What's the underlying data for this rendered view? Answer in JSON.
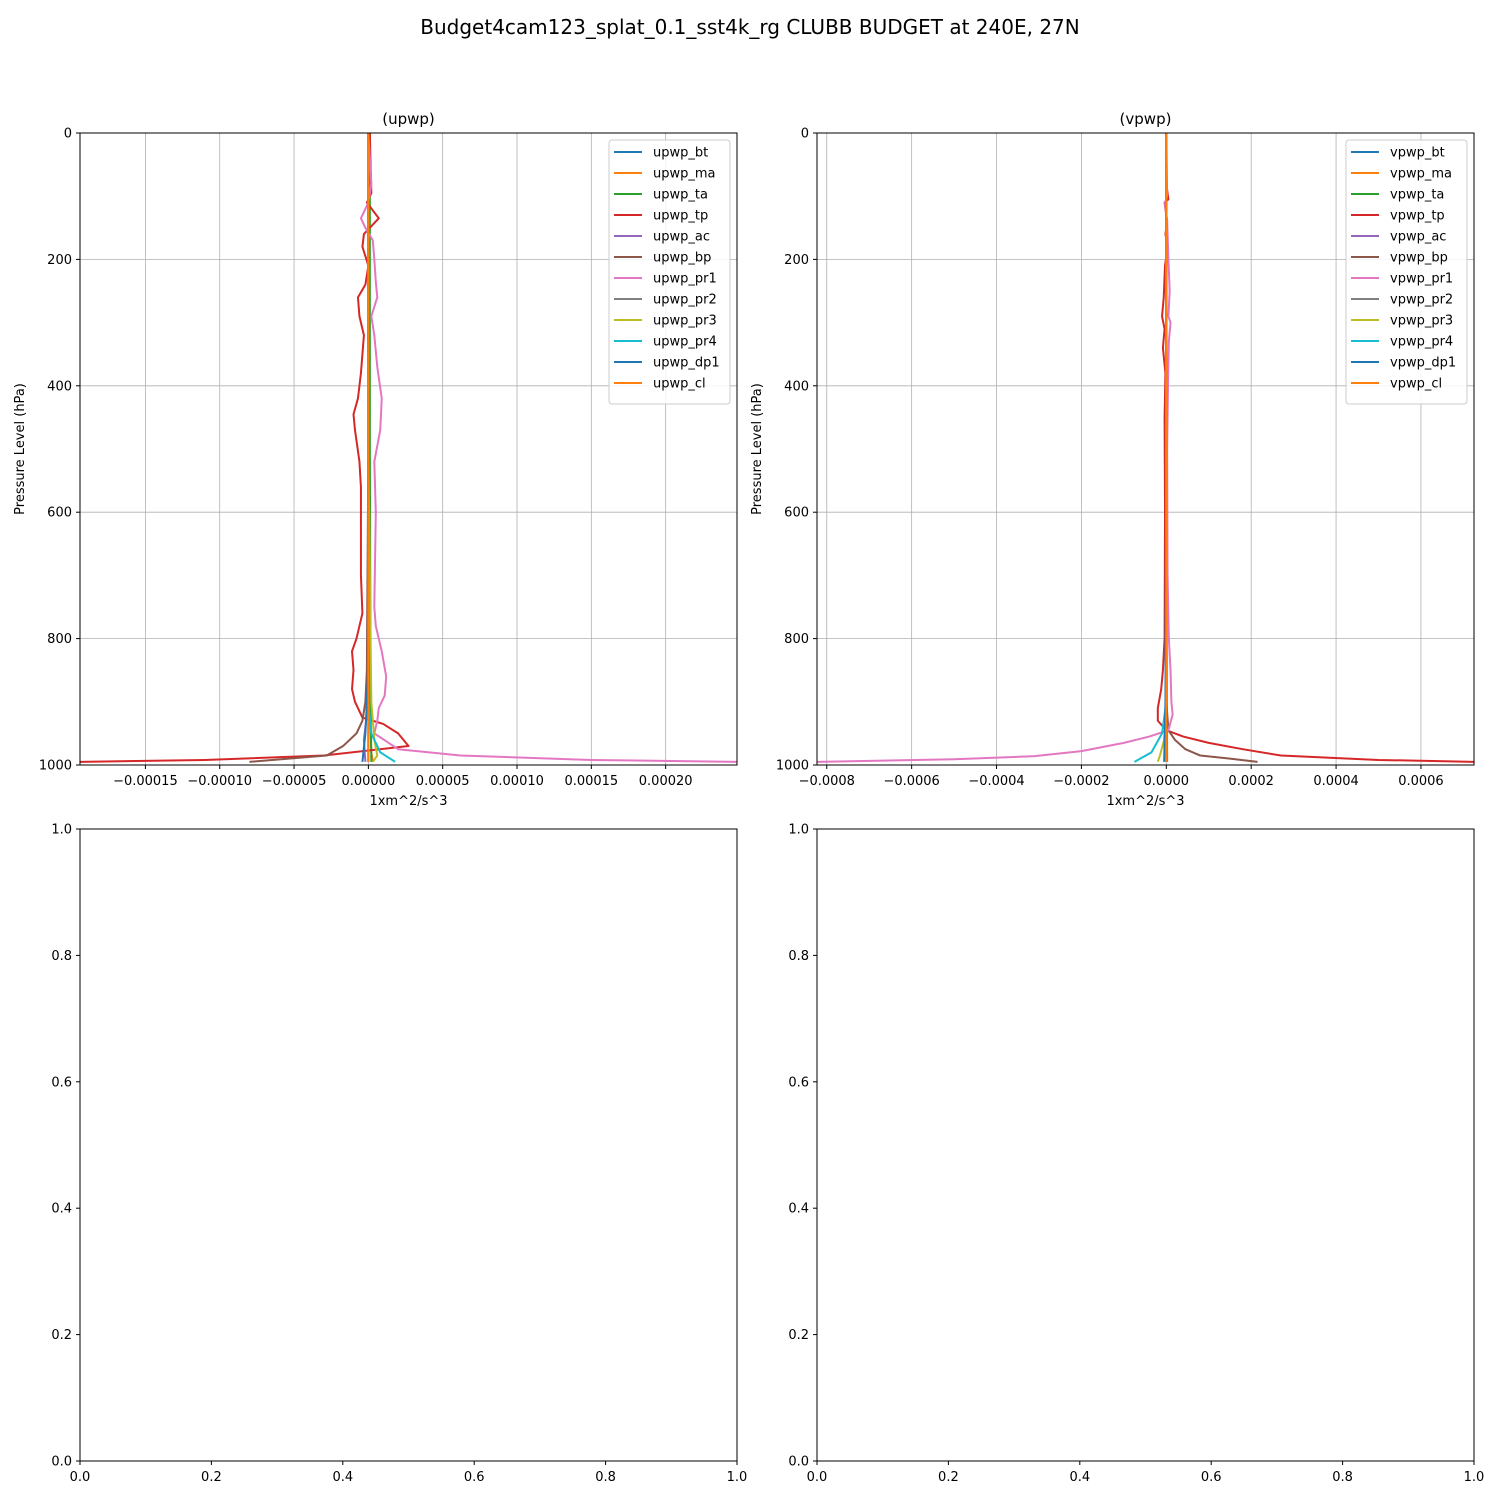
{
  "figure_title": "Budget4cam123_splat_0.1_sst4k_rg CLUBB BUDGET at 240E, 27N",
  "chart_data": [
    {
      "type": "line",
      "title": "(upwp)",
      "xlabel": "1xm^2/s^3",
      "ylabel": "Pressure Level (hPa)",
      "xlim": [
        -0.000194,
        0.000248
      ],
      "ylim": [
        1000,
        0
      ],
      "y_inverted": true,
      "grid": true,
      "legend_position": "upper right",
      "xticks": [
        -0.00015,
        -0.0001,
        -5e-05,
        0,
        5e-05,
        0.0001,
        0.00015,
        0.0002
      ],
      "xtick_labels": [
        "−0.00015",
        "−0.00010",
        "−0.00005",
        "0.00000",
        "0.00005",
        "0.00010",
        "0.00015",
        "0.00020"
      ],
      "yticks": [
        0,
        200,
        400,
        600,
        800,
        1000
      ],
      "ytick_labels": [
        "0",
        "200",
        "400",
        "600",
        "800",
        "1000"
      ],
      "series": [
        {
          "name": "upwp_bt",
          "color": "#1f77b4",
          "points": [
            [
              0.0,
              0
            ],
            [
              0.0,
              500
            ],
            [
              0.0,
              900
            ],
            [
              0.0,
              995
            ]
          ]
        },
        {
          "name": "upwp_ma",
          "color": "#ff7f0e",
          "points": [
            [
              5e-07,
              0
            ],
            [
              5e-07,
              500
            ],
            [
              1e-06,
              900
            ],
            [
              2e-06,
              980
            ],
            [
              3e-06,
              995
            ]
          ]
        },
        {
          "name": "upwp_ta",
          "color": "#2ca02c",
          "points": [
            [
              1e-06,
              0
            ],
            [
              1e-06,
              500
            ],
            [
              1.5e-06,
              900
            ],
            [
              2e-06,
              995
            ]
          ]
        },
        {
          "name": "upwp_tp",
          "color": "#d62728",
          "points": [
            [
              1e-06,
              0
            ],
            [
              1.5e-06,
              50
            ],
            [
              2e-06,
              95
            ],
            [
              -1e-06,
              110
            ],
            [
              7e-06,
              135
            ],
            [
              -3e-06,
              160
            ],
            [
              -4e-06,
              180
            ],
            [
              0.0,
              210
            ],
            [
              -2e-06,
              240
            ],
            [
              -7e-06,
              260
            ],
            [
              -6e-06,
              290
            ],
            [
              -3e-06,
              320
            ],
            [
              -5e-06,
              380
            ],
            [
              -7e-06,
              420
            ],
            [
              -1e-05,
              445
            ],
            [
              -9e-06,
              470
            ],
            [
              -6e-06,
              520
            ],
            [
              -5e-06,
              560
            ],
            [
              -5e-06,
              700
            ],
            [
              -4e-06,
              760
            ],
            [
              -8e-06,
              800
            ],
            [
              -1.1e-05,
              820
            ],
            [
              -1e-05,
              850
            ],
            [
              -1.1e-05,
              880
            ],
            [
              -9e-06,
              900
            ],
            [
              -4e-06,
              925
            ],
            [
              1e-05,
              935
            ],
            [
              2e-05,
              950
            ],
            [
              2.7e-05,
              970
            ],
            [
              -3e-05,
              985
            ],
            [
              -0.00011,
              992
            ],
            [
              -0.000194,
              995
            ]
          ]
        },
        {
          "name": "upwp_ac",
          "color": "#9467bd",
          "points": [
            [
              0.0,
              0
            ],
            [
              0.0,
              500
            ],
            [
              0.0,
              900
            ],
            [
              -3e-06,
              960
            ],
            [
              -2e-06,
              995
            ]
          ]
        },
        {
          "name": "upwp_bp",
          "color": "#8c564b",
          "points": [
            [
              0.0,
              0
            ],
            [
              0.0,
              500
            ],
            [
              -1e-06,
              850
            ],
            [
              -2e-06,
              900
            ],
            [
              -4e-06,
              930
            ],
            [
              -8e-06,
              950
            ],
            [
              -1.7e-05,
              970
            ],
            [
              -2.8e-05,
              985
            ],
            [
              -8e-05,
              995
            ]
          ]
        },
        {
          "name": "upwp_pr1",
          "color": "#e377c2",
          "points": [
            [
              0.0,
              0
            ],
            [
              1e-06,
              40
            ],
            [
              2e-06,
              80
            ],
            [
              0.0,
              110
            ],
            [
              -5e-06,
              135
            ],
            [
              -2e-06,
              150
            ],
            [
              3e-06,
              170
            ],
            [
              4e-06,
              200
            ],
            [
              5e-06,
              235
            ],
            [
              6e-06,
              260
            ],
            [
              2e-06,
              290
            ],
            [
              4e-06,
              320
            ],
            [
              6e-06,
              370
            ],
            [
              9e-06,
              420
            ],
            [
              8e-06,
              470
            ],
            [
              4e-06,
              520
            ],
            [
              5e-06,
              600
            ],
            [
              4e-06,
              750
            ],
            [
              5e-06,
              780
            ],
            [
              9e-06,
              820
            ],
            [
              1.2e-05,
              860
            ],
            [
              1.1e-05,
              890
            ],
            [
              7e-06,
              910
            ],
            [
              6e-06,
              930
            ],
            [
              4e-06,
              950
            ],
            [
              2e-05,
              975
            ],
            [
              6.2e-05,
              985
            ],
            [
              0.00015,
              992
            ],
            [
              0.000248,
              995
            ]
          ]
        },
        {
          "name": "upwp_pr2",
          "color": "#7f7f7f",
          "points": [
            [
              0.0,
              0
            ],
            [
              0.0,
              500
            ],
            [
              0.0,
              900
            ],
            [
              0.0,
              995
            ]
          ]
        },
        {
          "name": "upwp_pr3",
          "color": "#bcbd22",
          "points": [
            [
              0.0,
              0
            ],
            [
              0.0,
              500
            ],
            [
              2e-06,
              900
            ],
            [
              4e-06,
              960
            ],
            [
              6e-06,
              985
            ],
            [
              3e-06,
              995
            ]
          ]
        },
        {
          "name": "upwp_pr4",
          "color": "#17becf",
          "points": [
            [
              0.0,
              0
            ],
            [
              0.0,
              500
            ],
            [
              0.0,
              900
            ],
            [
              2e-06,
              950
            ],
            [
              8e-06,
              980
            ],
            [
              1.8e-05,
              995
            ]
          ]
        },
        {
          "name": "upwp_dp1",
          "color": "#1f77b4",
          "points": [
            [
              0.0,
              0
            ],
            [
              0.0,
              500
            ],
            [
              0.0,
              850
            ],
            [
              -2e-06,
              950
            ],
            [
              -4e-06,
              995
            ]
          ]
        },
        {
          "name": "upwp_cl",
          "color": "#ff7f0e",
          "points": [
            [
              0.0,
              0
            ],
            [
              0.0,
              500
            ],
            [
              0.0,
              900
            ],
            [
              0.0,
              995
            ]
          ]
        }
      ]
    },
    {
      "type": "line",
      "title": "(vpwp)",
      "xlabel": "1xm^2/s^3",
      "ylabel": "Pressure Level (hPa)",
      "xlim": [
        -0.000823,
        0.000725
      ],
      "ylim": [
        1000,
        0
      ],
      "y_inverted": true,
      "grid": true,
      "legend_position": "upper right",
      "xticks": [
        -0.0008,
        -0.0006,
        -0.0004,
        -0.0002,
        0,
        0.0002,
        0.0004,
        0.0006
      ],
      "xtick_labels": [
        "−0.0008",
        "−0.0006",
        "−0.0004",
        "−0.0002",
        "0.0000",
        "0.0002",
        "0.0004",
        "0.0006"
      ],
      "yticks": [
        0,
        200,
        400,
        600,
        800,
        1000
      ],
      "ytick_labels": [
        "0",
        "200",
        "400",
        "600",
        "800",
        "1000"
      ],
      "series": [
        {
          "name": "vpwp_bt",
          "color": "#1f77b4",
          "points": [
            [
              0.0,
              0
            ],
            [
              0.0,
              500
            ],
            [
              0.0,
              995
            ]
          ]
        },
        {
          "name": "vpwp_ma",
          "color": "#ff7f0e",
          "points": [
            [
              0.0,
              0
            ],
            [
              0.0,
              500
            ],
            [
              2e-06,
              995
            ]
          ]
        },
        {
          "name": "vpwp_ta",
          "color": "#2ca02c",
          "points": [
            [
              0.0,
              0
            ],
            [
              0.0,
              500
            ],
            [
              1e-06,
              995
            ]
          ]
        },
        {
          "name": "vpwp_tp",
          "color": "#d62728",
          "points": [
            [
              0.0,
              0
            ],
            [
              0.0,
              80
            ],
            [
              5e-06,
              105
            ],
            [
              -4e-06,
              110
            ],
            [
              2e-06,
              140
            ],
            [
              -2e-06,
              160
            ],
            [
              3e-06,
              180
            ],
            [
              -3e-06,
              210
            ],
            [
              -6e-06,
              260
            ],
            [
              -1e-05,
              290
            ],
            [
              -4e-06,
              310
            ],
            [
              -8e-06,
              340
            ],
            [
              -2e-06,
              380
            ],
            [
              -4e-06,
              450
            ],
            [
              -3e-06,
              600
            ],
            [
              -4e-06,
              800
            ],
            [
              -8e-06,
              850
            ],
            [
              -1.2e-05,
              880
            ],
            [
              -2e-05,
              910
            ],
            [
              -2e-05,
              930
            ],
            [
              0.0,
              945
            ],
            [
              4e-05,
              955
            ],
            [
              0.0001,
              965
            ],
            [
              0.00018,
              975
            ],
            [
              0.00027,
              985
            ],
            [
              0.0005,
              992
            ],
            [
              0.000725,
              995
            ]
          ]
        },
        {
          "name": "vpwp_ac",
          "color": "#9467bd",
          "points": [
            [
              0.0,
              0
            ],
            [
              0.0,
              500
            ],
            [
              0.0,
              995
            ]
          ]
        },
        {
          "name": "vpwp_bp",
          "color": "#8c564b",
          "points": [
            [
              0.0,
              0
            ],
            [
              0.0,
              500
            ],
            [
              0.0,
              900
            ],
            [
              5e-06,
              945
            ],
            [
              2e-05,
              960
            ],
            [
              4.5e-05,
              975
            ],
            [
              8e-05,
              985
            ],
            [
              0.00015,
              990
            ],
            [
              0.000215,
              995
            ]
          ]
        },
        {
          "name": "vpwp_pr1",
          "color": "#e377c2",
          "points": [
            [
              0.0,
              0
            ],
            [
              2e-06,
              100
            ],
            [
              -3e-06,
              110
            ],
            [
              2e-06,
              140
            ],
            [
              5e-06,
              200
            ],
            [
              8e-06,
              250
            ],
            [
              5e-06,
              290
            ],
            [
              1e-05,
              300
            ],
            [
              6e-06,
              330
            ],
            [
              4e-06,
              400
            ],
            [
              2e-06,
              500
            ],
            [
              3e-06,
              700
            ],
            [
              6e-06,
              800
            ],
            [
              1e-05,
              850
            ],
            [
              1.2e-05,
              900
            ],
            [
              1.5e-05,
              920
            ],
            [
              5e-06,
              945
            ],
            [
              -4e-05,
              955
            ],
            [
              -0.0001,
              965
            ],
            [
              -0.0002,
              978
            ],
            [
              -0.00031,
              986
            ],
            [
              -0.0005,
              991
            ],
            [
              -0.000823,
              995
            ]
          ]
        },
        {
          "name": "vpwp_pr2",
          "color": "#7f7f7f",
          "points": [
            [
              0.0,
              0
            ],
            [
              0.0,
              500
            ],
            [
              0.0,
              995
            ]
          ]
        },
        {
          "name": "vpwp_pr3",
          "color": "#bcbd22",
          "points": [
            [
              0.0,
              0
            ],
            [
              0.0,
              500
            ],
            [
              0.0,
              900
            ],
            [
              -5e-06,
              960
            ],
            [
              -1.5e-05,
              985
            ],
            [
              -2e-05,
              995
            ]
          ]
        },
        {
          "name": "vpwp_pr4",
          "color": "#17becf",
          "points": [
            [
              0.0,
              0
            ],
            [
              0.0,
              500
            ],
            [
              0.0,
              900
            ],
            [
              -1e-05,
              950
            ],
            [
              -3.5e-05,
              980
            ],
            [
              -7.5e-05,
              995
            ]
          ]
        },
        {
          "name": "vpwp_dp1",
          "color": "#1f77b4",
          "points": [
            [
              0.0,
              0
            ],
            [
              0.0,
              500
            ],
            [
              -2e-06,
              900
            ],
            [
              -5e-06,
              995
            ]
          ]
        },
        {
          "name": "vpwp_cl",
          "color": "#ff7f0e",
          "points": [
            [
              0.0,
              0
            ],
            [
              0.0,
              500
            ],
            [
              0.0,
              995
            ]
          ]
        }
      ]
    },
    {
      "type": "line",
      "title": "",
      "xlim": [
        0,
        1
      ],
      "ylim": [
        0,
        1
      ],
      "grid": false,
      "xticks": [
        0,
        0.2,
        0.4,
        0.6,
        0.8,
        1.0
      ],
      "xtick_labels": [
        "0.0",
        "0.2",
        "0.4",
        "0.6",
        "0.8",
        "1.0"
      ],
      "yticks": [
        0,
        0.2,
        0.4,
        0.6,
        0.8,
        1.0
      ],
      "ytick_labels": [
        "0.0",
        "0.2",
        "0.4",
        "0.6",
        "0.8",
        "1.0"
      ],
      "series": []
    },
    {
      "type": "line",
      "title": "",
      "xlim": [
        0,
        1
      ],
      "ylim": [
        0,
        1
      ],
      "grid": false,
      "xticks": [
        0,
        0.2,
        0.4,
        0.6,
        0.8,
        1.0
      ],
      "xtick_labels": [
        "0.0",
        "0.2",
        "0.4",
        "0.6",
        "0.8",
        "1.0"
      ],
      "yticks": [
        0,
        0.2,
        0.4,
        0.6,
        0.8,
        1.0
      ],
      "ytick_labels": [
        "0.0",
        "0.2",
        "0.4",
        "0.6",
        "0.8",
        "1.0"
      ],
      "series": []
    }
  ]
}
